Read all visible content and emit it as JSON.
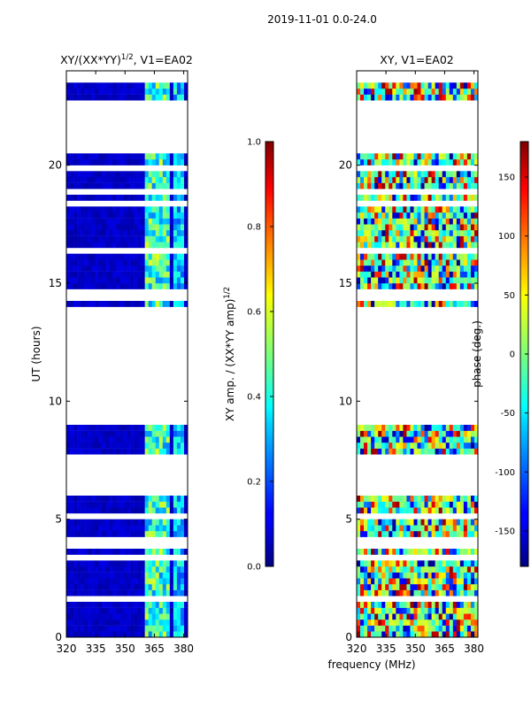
{
  "suptitle": "2019-11-01 0.0-24.0",
  "chart_data": [
    {
      "type": "heatmap",
      "title_main": "XY/(XX*YY)",
      "title_exp": "1/2",
      "title_suffix": ", V1=EA02",
      "xlabel": "",
      "ylabel": "UT (hours)",
      "x_ticks": [
        "320",
        "335",
        "350",
        "365",
        "380"
      ],
      "x_tick_values": [
        320,
        335,
        350,
        365,
        380
      ],
      "xlim": [
        320,
        382
      ],
      "y_ticks": [
        "0",
        "5",
        "10",
        "15",
        "20"
      ],
      "y_tick_values": [
        0,
        5,
        10,
        15,
        20
      ],
      "ylim": [
        0,
        24
      ],
      "data_coverage_hours": [
        [
          0.0,
          6.1
        ],
        [
          7.6,
          9.0
        ],
        [
          14.1,
          20.4
        ],
        [
          22.7,
          24.0
        ]
      ],
      "colorbar": {
        "label_main": "XY amp. / (XX*YY amp)",
        "label_exp": "1/2",
        "range": [
          0.0,
          1.0
        ],
        "ticks": [
          "0.0",
          "0.2",
          "0.4",
          "0.6",
          "0.8",
          "1.0"
        ],
        "tick_values": [
          0.0,
          0.2,
          0.4,
          0.6,
          0.8,
          1.0
        ]
      }
    },
    {
      "type": "heatmap",
      "title": "XY, V1=EA02",
      "xlabel": "frequency (MHz)",
      "ylabel": "",
      "x_ticks": [
        "320",
        "335",
        "350",
        "365",
        "380"
      ],
      "x_tick_values": [
        320,
        335,
        350,
        365,
        380
      ],
      "xlim": [
        320,
        382
      ],
      "y_ticks": [
        "0",
        "5",
        "10",
        "15",
        "20"
      ],
      "y_tick_values": [
        0,
        5,
        10,
        15,
        20
      ],
      "ylim": [
        0,
        24
      ],
      "data_coverage_hours": [
        [
          0.0,
          6.1
        ],
        [
          7.6,
          9.0
        ],
        [
          14.1,
          20.4
        ],
        [
          22.7,
          24.0
        ]
      ],
      "colorbar": {
        "label": "phase (deg.)",
        "range": [
          -180,
          180
        ],
        "ticks": [
          "-150",
          "-100",
          "-50",
          "0",
          "50",
          "100",
          "150"
        ],
        "tick_values": [
          -150,
          -100,
          -50,
          0,
          50,
          100,
          150
        ]
      }
    }
  ],
  "colormap": "jet"
}
